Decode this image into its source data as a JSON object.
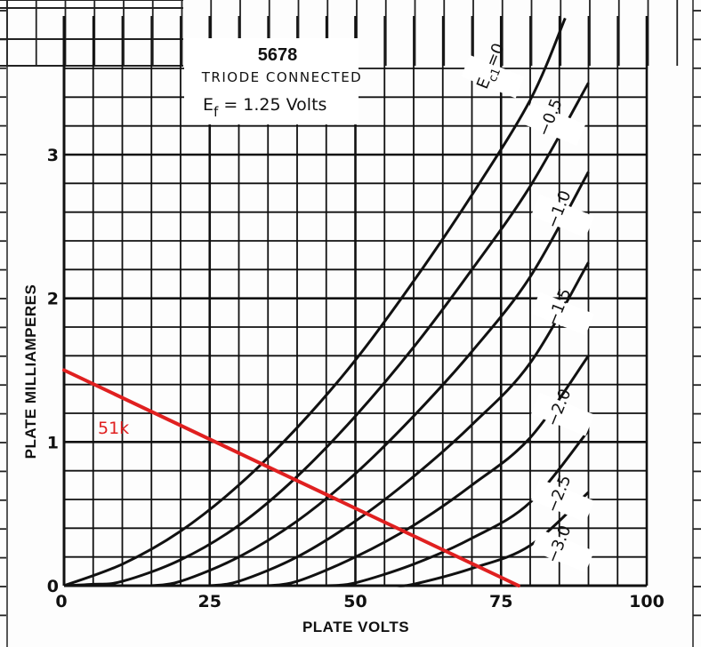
{
  "chart_data": {
    "type": "line",
    "title": "5678",
    "subtitle": "TRIODE CONNECTED",
    "note": "E_f = 1.25 Volts",
    "note_parts": {
      "e": "E",
      "sub": "f",
      "rest": " = 1.25 Volts"
    },
    "xlabel": "PLATE VOLTS",
    "ylabel": "PLATE MILLIAMPERES",
    "xlim": [
      0,
      100
    ],
    "ylim": [
      0,
      3.6
    ],
    "xticks": [
      {
        "value": 0,
        "label": "0"
      },
      {
        "value": 25,
        "label": "25"
      },
      {
        "value": 50,
        "label": "50"
      },
      {
        "value": 75,
        "label": "75"
      },
      {
        "value": 100,
        "label": "100"
      }
    ],
    "yticks": [
      {
        "value": 0,
        "label": "0"
      },
      {
        "value": 1,
        "label": "1"
      },
      {
        "value": 2,
        "label": "2"
      },
      {
        "value": 3,
        "label": "3"
      }
    ],
    "grid": true,
    "series": [
      {
        "name": "E_c1 = 0",
        "label": "0",
        "label_prefix": "E",
        "label_sub": "c1",
        "label_suffix": "=0",
        "x": [
          0,
          10,
          20,
          30,
          40,
          50,
          60,
          70,
          80,
          86
        ],
        "y": [
          0,
          0.15,
          0.38,
          0.7,
          1.1,
          1.57,
          2.12,
          2.72,
          3.38,
          3.95
        ]
      },
      {
        "name": "-0.5",
        "label": "−0.5",
        "x": [
          0,
          5,
          10,
          20,
          30,
          40,
          50,
          60,
          70,
          80,
          90
        ],
        "y": [
          0,
          0.01,
          0.03,
          0.18,
          0.42,
          0.76,
          1.18,
          1.66,
          2.2,
          2.78,
          3.5
        ]
      },
      {
        "name": "-1.0",
        "label": "−1.0",
        "x": [
          15,
          20,
          30,
          40,
          50,
          60,
          70,
          80,
          90
        ],
        "y": [
          0,
          0.03,
          0.2,
          0.45,
          0.78,
          1.18,
          1.63,
          2.15,
          2.88
        ]
      },
      {
        "name": "-1.5",
        "label": "−1.5",
        "x": [
          25,
          30,
          40,
          50,
          60,
          70,
          80,
          90
        ],
        "y": [
          0,
          0.03,
          0.2,
          0.45,
          0.76,
          1.12,
          1.55,
          2.25
        ]
      },
      {
        "name": "-2.0",
        "label": "−2.0",
        "x": [
          35,
          40,
          50,
          60,
          70,
          80,
          90
        ],
        "y": [
          0,
          0.03,
          0.2,
          0.42,
          0.7,
          1.03,
          1.6
        ]
      },
      {
        "name": "-2.5",
        "label": "−2.5",
        "x": [
          45,
          50,
          60,
          70,
          80,
          90
        ],
        "y": [
          0,
          0.02,
          0.15,
          0.33,
          0.58,
          1.08
        ]
      },
      {
        "name": "-3.0",
        "label": "−3.0",
        "x": [
          57,
          60,
          70,
          80,
          90
        ],
        "y": [
          0,
          0.01,
          0.12,
          0.28,
          0.65
        ]
      }
    ],
    "load_line": {
      "label": "51k",
      "color": "#e02020",
      "x": [
        0,
        78
      ],
      "y": [
        1.5,
        0
      ]
    }
  }
}
